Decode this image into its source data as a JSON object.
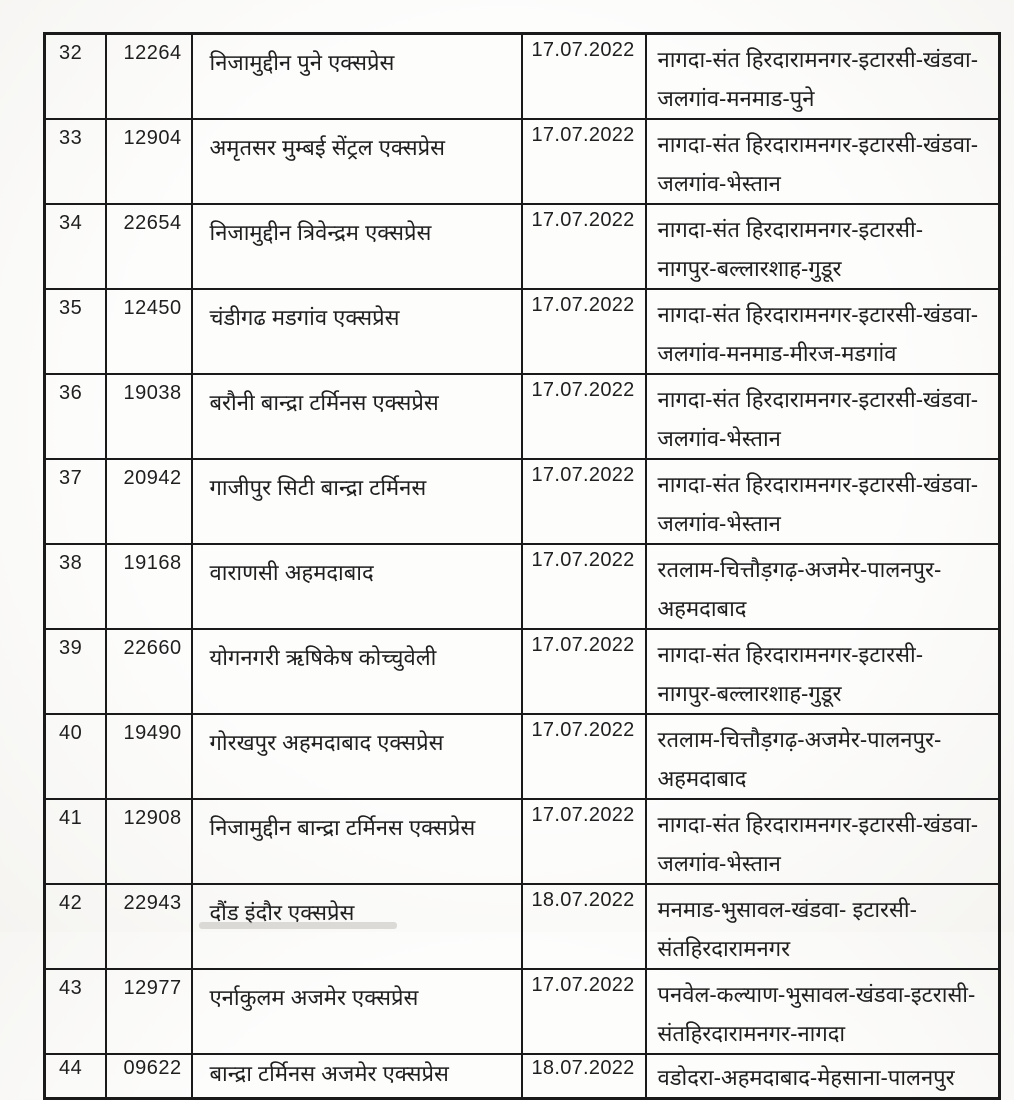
{
  "colors": {
    "paper": "#fdfdfc",
    "ink": "#1f1f1f",
    "border": "#1a1a1a"
  },
  "table": {
    "rows": [
      {
        "sno": "32",
        "train_no": "12264",
        "train_name": "निजामुद्दीन पुने एक्सप्रेस",
        "date": "17.07.2022",
        "route": "नागदा-संत हिरदारामनगर-इटारसी-खंडवा-\nजलगांव-मनमाड-पुने"
      },
      {
        "sno": "33",
        "train_no": "12904",
        "train_name": "अमृतसर मुम्बई सेंट्रल एक्सप्रेस",
        "date": "17.07.2022",
        "route": "नागदा-संत हिरदारामनगर-इटारसी-खंडवा-\nजलगांव-भेस्तान"
      },
      {
        "sno": "34",
        "train_no": "22654",
        "train_name": "निजामुद्दीन त्रिवेन्द्रम एक्सप्रेस",
        "date": "17.07.2022",
        "route": "नागदा-संत हिरदारामनगर-इटारसी-\nनागपुर-बल्लारशाह-गुडूर"
      },
      {
        "sno": "35",
        "train_no": "12450",
        "train_name": "चंडीगढ मडगांव एक्सप्रेस",
        "date": "17.07.2022",
        "route": "नागदा-संत हिरदारामनगर-इटारसी-खंडवा-\nजलगांव-मनमाड-मीरज-मडगांव"
      },
      {
        "sno": "36",
        "train_no": "19038",
        "train_name": "बरौनी बान्द्रा टर्मिनस एक्सप्रेस",
        "date": "17.07.2022",
        "route": "नागदा-संत हिरदारामनगर-इटारसी-खंडवा-\nजलगांव-भेस्तान"
      },
      {
        "sno": "37",
        "train_no": "20942",
        "train_name": "गाजीपुर सिटी बान्द्रा टर्मिनस",
        "date": "17.07.2022",
        "route": "नागदा-संत हिरदारामनगर-इटारसी-खंडवा-\nजलगांव-भेस्तान"
      },
      {
        "sno": "38",
        "train_no": "19168",
        "train_name": "वाराणसी अहमदाबाद",
        "date": "17.07.2022",
        "route": "रतलाम-चित्तौड़गढ़-अजमेर-पालनपुर-\nअहमदाबाद"
      },
      {
        "sno": "39",
        "train_no": "22660",
        "train_name": "योगनगरी ऋषिकेष कोच्चुवेली",
        "date": "17.07.2022",
        "route": "नागदा-संत हिरदारामनगर-इटारसी-\nनागपुर-बल्लारशाह-गुडूर"
      },
      {
        "sno": "40",
        "train_no": "19490",
        "train_name": "गोरखपुर अहमदाबाद एक्सप्रेस",
        "date": "17.07.2022",
        "route": "रतलाम-चित्तौड़गढ़-अजमेर-पालनपुर-\nअहमदाबाद"
      },
      {
        "sno": "41",
        "train_no": "12908",
        "train_name": "निजामुद्दीन बान्द्रा टर्मिनस एक्सप्रेस",
        "date": "17.07.2022",
        "route": "नागदा-संत हिरदारामनगर-इटारसी-खंडवा-\nजलगांव-भेस्तान"
      },
      {
        "sno": "42",
        "train_no": "22943",
        "train_name": "दौंड इंदौर एक्सप्रेस",
        "date": "18.07.2022",
        "route": "मनमाड-भुसावल-खंडवा- इटारसी-\nसंतहिरदारामनगर"
      },
      {
        "sno": "43",
        "train_no": "12977",
        "train_name": "एर्नाकुलम अजमेर एक्सप्रेस",
        "date": "17.07.2022",
        "route": "पनवेल-कल्याण-भुसावल-खंडवा-इटरासी-\nसंतहिरदारामनगर-नागदा"
      },
      {
        "sno": "44",
        "train_no": "09622",
        "train_name": "बान्द्रा टर्मिनस अजमेर एक्सप्रेस",
        "date": "18.07.2022",
        "route": "वडोदरा-अहमदाबाद-मेहसाना-पालनपुर"
      }
    ]
  }
}
